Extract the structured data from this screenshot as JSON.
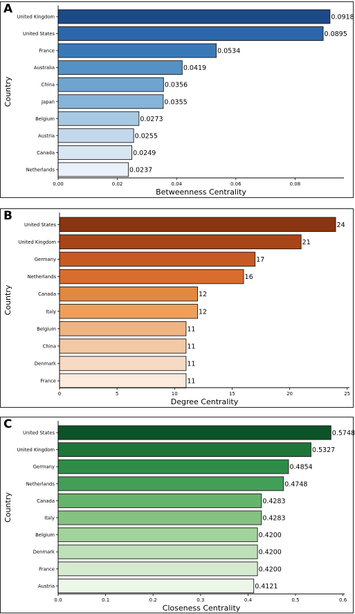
{
  "chart_data": [
    {
      "type": "bar",
      "orientation": "horizontal",
      "panel_label": "A",
      "categories": [
        "United Kingdom",
        "United States",
        "France",
        "Australia",
        "China",
        "Japan",
        "Belgium",
        "Austria",
        "Canada",
        "Netherlands"
      ],
      "values": [
        0.0918,
        0.0895,
        0.0534,
        0.0419,
        0.0356,
        0.0355,
        0.0273,
        0.0255,
        0.0249,
        0.0237
      ],
      "value_labels": [
        "0.0918",
        "0.0895",
        "0.0534",
        "0.0419",
        "0.0356",
        "0.0355",
        "0.0273",
        "0.0255",
        "0.0249",
        "0.0237"
      ],
      "colors": [
        "#1b4a87",
        "#2c67ab",
        "#3a79b8",
        "#5591c4",
        "#6fa4cf",
        "#86b4d8",
        "#a8c9e2",
        "#c3d8eb",
        "#d8e5f3",
        "#eaf1fa"
      ],
      "xlabel": "Betweenness Centrality",
      "ylabel": "Country",
      "xlim": [
        0,
        0.0965
      ],
      "xticks": [
        0.0,
        0.02,
        0.04,
        0.06,
        0.08
      ],
      "xtick_labels": [
        "0.00",
        "0.02",
        "0.04",
        "0.06",
        "0.08"
      ]
    },
    {
      "type": "bar",
      "orientation": "horizontal",
      "panel_label": "B",
      "categories": [
        "United States",
        "United Kingdom",
        "Germany",
        "Netherlands",
        "Canada",
        "Italy",
        "Belgium",
        "China",
        "Denmark",
        "France"
      ],
      "values": [
        24,
        21,
        17,
        16,
        12,
        12,
        11,
        11,
        11,
        11
      ],
      "value_labels": [
        "24",
        "21",
        "17",
        "16",
        "12",
        "12",
        "11",
        "11",
        "11",
        "11"
      ],
      "colors": [
        "#8a3410",
        "#a84516",
        "#c65a22",
        "#d86d2e",
        "#e3883f",
        "#eca05c",
        "#efb482",
        "#f2c9a5",
        "#f7dac3",
        "#fcebdc"
      ],
      "xlabel": "Degree Centrality",
      "ylabel": "Country",
      "xlim": [
        0,
        25.2
      ],
      "xticks": [
        0,
        5,
        10,
        15,
        20,
        25
      ],
      "xtick_labels": [
        "0",
        "5",
        "10",
        "15",
        "20",
        "25"
      ]
    },
    {
      "type": "bar",
      "orientation": "horizontal",
      "panel_label": "C",
      "categories": [
        "United States",
        "United Kingdom",
        "Germany",
        "Netherlands",
        "Canada",
        "Italy",
        "Belgium",
        "Denmark",
        "France",
        "Austria"
      ],
      "values": [
        0.5748,
        0.5327,
        0.4854,
        0.4748,
        0.4283,
        0.4283,
        0.42,
        0.42,
        0.42,
        0.4121
      ],
      "value_labels": [
        "0.5748",
        "0.5327",
        "0.4854",
        "0.4748",
        "0.4283",
        "0.4283",
        "0.4200",
        "0.4200",
        "0.4200",
        "0.4121"
      ],
      "colors": [
        "#0c5328",
        "#1e7538",
        "#2f8c48",
        "#439f58",
        "#66b36e",
        "#85c282",
        "#a3d29c",
        "#bde0b6",
        "#d4ebcf",
        "#ecf6e9"
      ],
      "xlabel": "Closeness Centrality",
      "ylabel": "Country",
      "xlim": [
        0,
        0.6035
      ],
      "xticks": [
        0.0,
        0.1,
        0.2,
        0.3,
        0.4,
        0.5,
        0.6
      ],
      "xtick_labels": [
        "0.0",
        "0.1",
        "0.2",
        "0.3",
        "0.4",
        "0.5",
        "0.6"
      ]
    }
  ]
}
